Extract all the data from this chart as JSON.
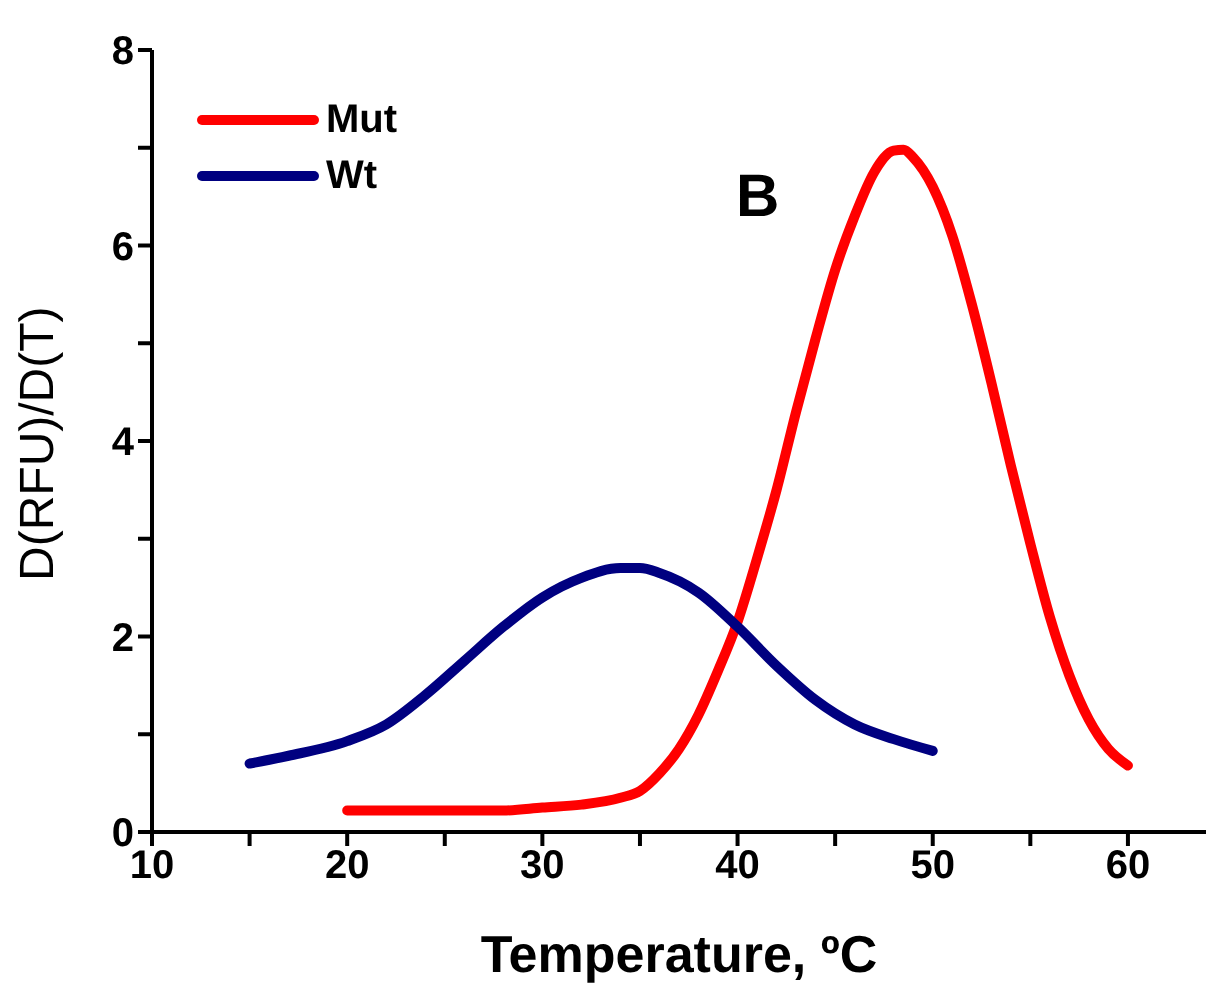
{
  "chart_data": {
    "type": "line",
    "annotations": [
      "B"
    ],
    "xlabel": "Temperature, ºC",
    "ylabel": "D(RFU)/D(T)",
    "xlim": [
      10,
      64
    ],
    "xticks": [
      10,
      {
        "value": 15,
        "label": null
      },
      20,
      {
        "value": 25,
        "label": null
      },
      30,
      {
        "value": 35,
        "label": null
      },
      40,
      {
        "value": 45,
        "label": null
      },
      50,
      {
        "value": 55,
        "label": null
      },
      60
    ],
    "ylim": [
      0,
      8
    ],
    "yticks": [
      0,
      {
        "value": 1,
        "label": null
      },
      2,
      {
        "value": 3,
        "label": null
      },
      4,
      {
        "value": 5,
        "label": null
      },
      6,
      {
        "value": 7,
        "label": null
      },
      8
    ],
    "grid": false,
    "legend": "top left",
    "marker": "none",
    "line_style": "solid",
    "series": [
      {
        "name": "Mut",
        "color": "#ff0000",
        "x": [
          20,
          25,
          28,
          30,
          32,
          34,
          35,
          36,
          37,
          38,
          39,
          40,
          41,
          42,
          43,
          44,
          45,
          46,
          47,
          48,
          48.5,
          49,
          50,
          51,
          52,
          53,
          54,
          55,
          56,
          57,
          58,
          59,
          60
        ],
        "values": [
          0.22,
          0.22,
          0.22,
          0.25,
          0.28,
          0.35,
          0.42,
          0.6,
          0.85,
          1.2,
          1.65,
          2.15,
          2.8,
          3.5,
          4.3,
          5.05,
          5.75,
          6.3,
          6.75,
          6.97,
          6.98,
          6.9,
          6.6,
          6.1,
          5.4,
          4.6,
          3.75,
          2.95,
          2.2,
          1.6,
          1.15,
          0.85,
          0.68
        ]
      },
      {
        "name": "Wt",
        "color": "#000080",
        "x": [
          15,
          17,
          20,
          22,
          24,
          26,
          28,
          30,
          32,
          34,
          35,
          36,
          38,
          40,
          42,
          44,
          46,
          48,
          50
        ],
        "values": [
          0.7,
          0.78,
          0.93,
          1.1,
          1.4,
          1.75,
          2.1,
          2.4,
          2.6,
          2.7,
          2.7,
          2.65,
          2.45,
          2.1,
          1.7,
          1.35,
          1.1,
          0.95,
          0.83
        ]
      }
    ]
  }
}
